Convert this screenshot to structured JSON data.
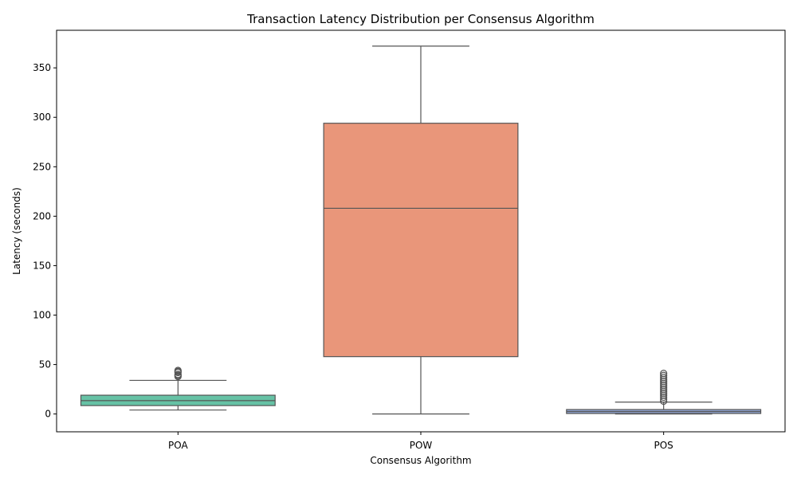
{
  "chart_data": {
    "type": "box",
    "title": "Transaction Latency Distribution per Consensus Algorithm",
    "xlabel": "Consensus Algorithm",
    "ylabel": "Latency (seconds)",
    "ylim": [
      -18,
      388
    ],
    "yticks": [
      0,
      50,
      100,
      150,
      200,
      250,
      300,
      350
    ],
    "grid": false,
    "categories": [
      "POA",
      "POW",
      "POS"
    ],
    "boxes": [
      {
        "category": "POA",
        "whisker_low": 4,
        "q1": 8.5,
        "median": 13.5,
        "q3": 19,
        "whisker_high": 34,
        "outliers": [
          38,
          39,
          40,
          42,
          43,
          44
        ],
        "color": "#66c2a5"
      },
      {
        "category": "POW",
        "whisker_low": 0,
        "q1": 58,
        "median": 208,
        "q3": 294,
        "whisker_high": 372,
        "outliers": [],
        "color": "#e9967a"
      },
      {
        "category": "POS",
        "whisker_low": 0,
        "q1": 0.5,
        "median": 2.5,
        "q3": 4.5,
        "whisker_high": 12,
        "outliers": [
          13,
          15,
          17,
          19,
          21,
          23,
          25,
          27,
          29,
          31,
          33,
          35,
          37,
          39,
          41
        ],
        "color": "#8da0cb"
      }
    ]
  }
}
